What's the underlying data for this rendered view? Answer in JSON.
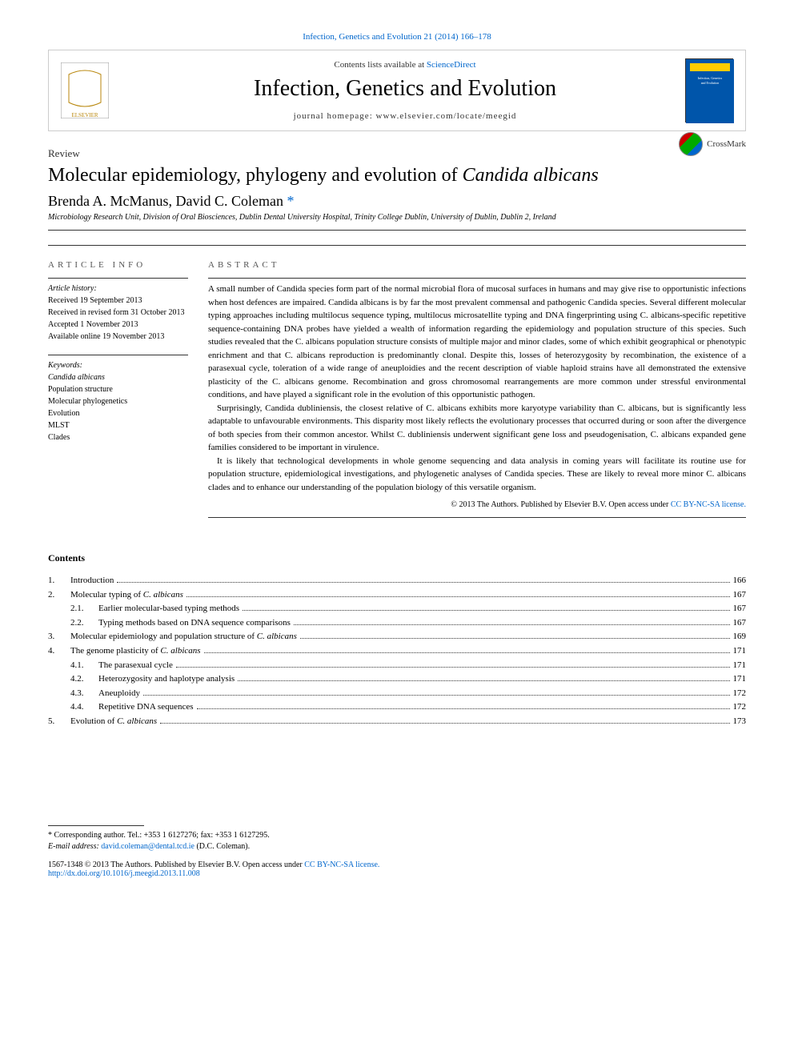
{
  "citation": {
    "text": "Infection, Genetics and Evolution 21 (2014) 166–178",
    "link_color": "#0066cc"
  },
  "header": {
    "contents_note_prefix": "Contents lists available at ",
    "contents_link": "ScienceDirect",
    "journal_name": "Infection, Genetics and Evolution",
    "homepage_label": "journal homepage: www.elsevier.com/locate/meegid",
    "cover_title": "Infection, Genetics and Evolution"
  },
  "article": {
    "type": "Review",
    "title_plain": "Molecular epidemiology, phylogeny and evolution of ",
    "title_italic": "Candida albicans",
    "crossmark": "CrossMark"
  },
  "authors": {
    "a1": "Brenda A. McManus",
    "a2": "David C. Coleman",
    "corresp_marker": "*"
  },
  "affiliation": "Microbiology Research Unit, Division of Oral Biosciences, Dublin Dental University Hospital, Trinity College Dublin, University of Dublin, Dublin 2, Ireland",
  "article_info": {
    "heading": "ARTICLE INFO",
    "history_label": "Article history:",
    "received": "Received 19 September 2013",
    "revised": "Received in revised form 31 October 2013",
    "accepted": "Accepted 1 November 2013",
    "online": "Available online 19 November 2013",
    "keywords_label": "Keywords:",
    "keywords": [
      "Candida albicans",
      "Population structure",
      "Molecular phylogenetics",
      "Evolution",
      "MLST",
      "Clades"
    ]
  },
  "abstract": {
    "heading": "ABSTRACT",
    "p1": "A small number of Candida species form part of the normal microbial flora of mucosal surfaces in humans and may give rise to opportunistic infections when host defences are impaired. Candida albicans is by far the most prevalent commensal and pathogenic Candida species. Several different molecular typing approaches including multilocus sequence typing, multilocus microsatellite typing and DNA fingerprinting using C. albicans-specific repetitive sequence-containing DNA probes have yielded a wealth of information regarding the epidemiology and population structure of this species. Such studies revealed that the C. albicans population structure consists of multiple major and minor clades, some of which exhibit geographical or phenotypic enrichment and that C. albicans reproduction is predominantly clonal. Despite this, losses of heterozygosity by recombination, the existence of a parasexual cycle, toleration of a wide range of aneuploidies and the recent description of viable haploid strains have all demonstrated the extensive plasticity of the C. albicans genome. Recombination and gross chromosomal rearrangements are more common under stressful environmental conditions, and have played a significant role in the evolution of this opportunistic pathogen.",
    "p2": "Surprisingly, Candida dubliniensis, the closest relative of C. albicans exhibits more karyotype variability than C. albicans, but is significantly less adaptable to unfavourable environments. This disparity most likely reflects the evolutionary processes that occurred during or soon after the divergence of both species from their common ancestor. Whilst C. dubliniensis underwent significant gene loss and pseudogenisation, C. albicans expanded gene families considered to be important in virulence.",
    "p3": "It is likely that technological developments in whole genome sequencing and data analysis in coming years will facilitate its routine use for population structure, epidemiological investigations, and phylogenetic analyses of Candida species. These are likely to reveal more minor C. albicans clades and to enhance our understanding of the population biology of this versatile organism.",
    "copyright": "© 2013 The Authors. Published by Elsevier B.V. ",
    "license_prefix": "Open access under ",
    "license_link": "CC BY-NC-SA license."
  },
  "contents": {
    "heading": "Contents",
    "items": [
      {
        "num": "1.",
        "title": "Introduction",
        "page": "166"
      },
      {
        "num": "2.",
        "title": "Molecular typing of ",
        "italic": "C. albicans",
        "page": "167"
      },
      {
        "sub": true,
        "num": "2.1.",
        "title": "Earlier molecular-based typing methods",
        "page": "167"
      },
      {
        "sub": true,
        "num": "2.2.",
        "title": "Typing methods based on DNA sequence comparisons",
        "page": "167"
      },
      {
        "num": "3.",
        "title": "Molecular epidemiology and population structure of ",
        "italic": "C. albicans",
        "page": "169"
      },
      {
        "num": "4.",
        "title": "The genome plasticity of ",
        "italic": "C. albicans",
        "page": "171"
      },
      {
        "sub": true,
        "num": "4.1.",
        "title": "The parasexual cycle",
        "page": "171"
      },
      {
        "sub": true,
        "num": "4.2.",
        "title": "Heterozygosity and haplotype analysis",
        "page": "171"
      },
      {
        "sub": true,
        "num": "4.3.",
        "title": "Aneuploidy",
        "page": "172"
      },
      {
        "sub": true,
        "num": "4.4.",
        "title": "Repetitive DNA sequences",
        "page": "172"
      },
      {
        "num": "5.",
        "title": "Evolution of ",
        "italic": "C. albicans",
        "page": "173"
      }
    ]
  },
  "footnote": {
    "corresp_text": "* Corresponding author. Tel.: +353 1 6127276; fax: +353 1 6127295.",
    "email_label": "E-mail address: ",
    "email": "david.coleman@dental.tcd.ie",
    "email_suffix": " (D.C. Coleman)."
  },
  "doi": {
    "issn_line": "1567-1348 © 2013 The Authors. Published by Elsevier B.V. ",
    "license_prefix": "Open access under ",
    "license_link": "CC BY-NC-SA license.",
    "doi_link": "http://dx.doi.org/10.1016/j.meegid.2013.11.008"
  },
  "colors": {
    "link": "#0066cc",
    "text": "#000000",
    "rule": "#333333",
    "cover_bg": "#0055aa"
  },
  "typography": {
    "body_font": "Times New Roman, serif",
    "journal_title_size": 28,
    "article_title_size": 24,
    "authors_size": 18,
    "body_size": 11,
    "small_size": 10
  }
}
